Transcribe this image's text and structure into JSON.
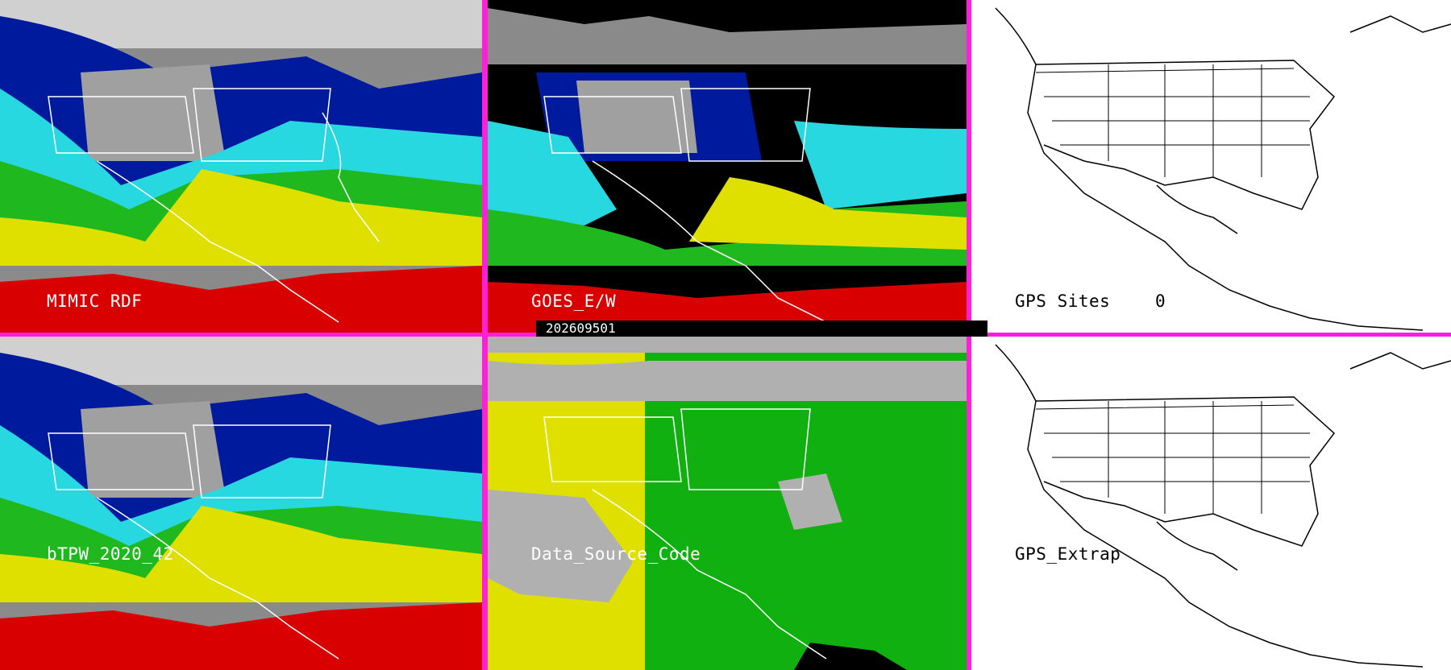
{
  "panels": [
    {
      "name": "tpw-mimic-panel",
      "label": "MIMIC RDF",
      "style": "satellite"
    },
    {
      "name": "tpw-goes-panel",
      "label": "GOES_E/W",
      "style": "satellite-dark"
    },
    {
      "name": "gps-sites-panel",
      "label": "GPS Sites",
      "count": "0",
      "style": "basemap"
    },
    {
      "name": "btpw-panel",
      "label": "bTPW_2020_42",
      "style": "satellite"
    },
    {
      "name": "data-source-panel",
      "label": "Data_Source_Code",
      "style": "source"
    },
    {
      "name": "gps-extrap-panel",
      "label": "GPS_Extrap",
      "style": "basemap"
    }
  ],
  "timestamp": "202609501",
  "colors": {
    "divider": "#ff1fd8",
    "dry": "#9e9e9e",
    "low": "#001a9e",
    "mid_low": "#28d8e0",
    "mid": "#1fb91f",
    "mid_high": "#e0e000",
    "high": "#d80000",
    "source_yellow": "#e0e000",
    "source_green": "#10b010",
    "source_gray": "#b0b0b0"
  }
}
